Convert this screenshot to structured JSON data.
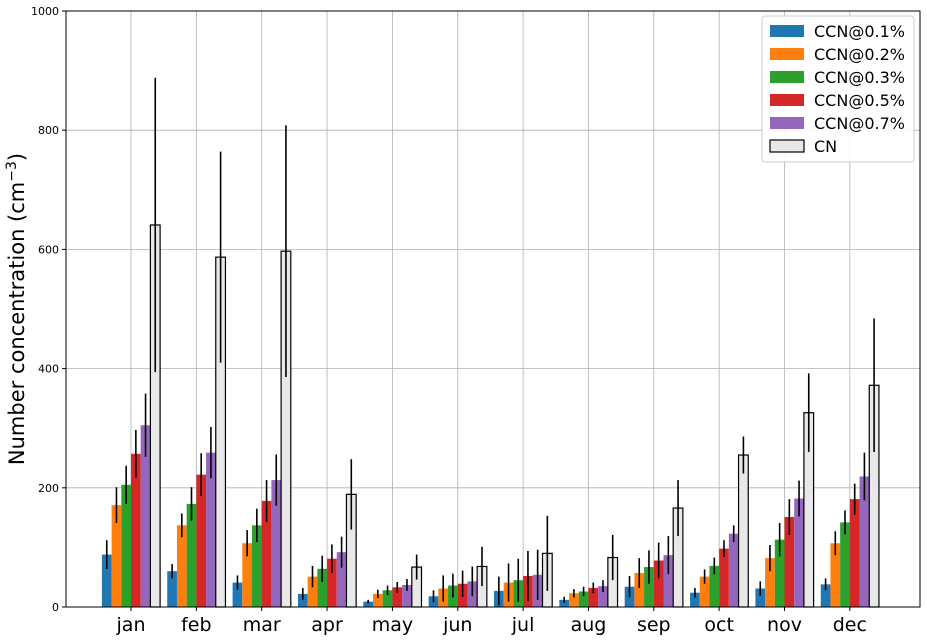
{
  "chart_data": {
    "type": "bar",
    "title": "",
    "xlabel": "",
    "ylabel": "Number concentration (cm",
    "ylabel_exponent": "−3",
    "ylabel_close": ")",
    "categories": [
      "jan",
      "feb",
      "mar",
      "apr",
      "may",
      "jun",
      "jul",
      "aug",
      "sep",
      "oct",
      "nov",
      "dec"
    ],
    "ylim": [
      0,
      1000
    ],
    "yticks": [
      0,
      200,
      400,
      600,
      800,
      1000
    ],
    "grid": true,
    "legend_position": "top-right",
    "series": [
      {
        "name": "CCN@0.1%",
        "color": "#1f77b4",
        "values": [
          88,
          60,
          41,
          22,
          9,
          18,
          27,
          12,
          34,
          24,
          31,
          38
        ],
        "err": [
          24,
          12,
          12,
          10,
          3,
          10,
          24,
          5,
          18,
          8,
          12,
          10
        ]
      },
      {
        "name": "CCN@0.2%",
        "color": "#ff7f0e",
        "values": [
          171,
          137,
          107,
          51,
          22,
          31,
          41,
          23,
          57,
          51,
          82,
          107
        ]
      },
      {
        "name": "CCN@0.3%",
        "color": "#2ca02c",
        "values": [
          205,
          173,
          137,
          64,
          28,
          36,
          45,
          26,
          67,
          69,
          113,
          142
        ]
      },
      {
        "name": "CCN@0.5%",
        "color": "#d62728",
        "values": [
          257,
          222,
          178,
          81,
          33,
          39,
          52,
          32,
          78,
          98,
          151,
          181
        ]
      },
      {
        "name": "CCN@0.7%",
        "color": "#9467bd",
        "values": [
          305,
          259,
          213,
          92,
          37,
          43,
          54,
          35,
          87,
          123,
          182,
          219
        ]
      },
      {
        "name": "CN",
        "color": "#e8e8e8",
        "edge": "#000000",
        "values": [
          641,
          587,
          597,
          189,
          67,
          68,
          90,
          83,
          166,
          255,
          326,
          372
        ],
        "err": [
          247,
          177,
          211,
          59,
          21,
          33,
          63,
          38,
          47,
          31,
          66,
          112
        ]
      }
    ],
    "series_errors": {
      "CCN@0.2%": [
        30,
        20,
        22,
        18,
        7,
        22,
        32,
        7,
        25,
        12,
        22,
        20
      ],
      "CCN@0.3%": [
        32,
        28,
        28,
        22,
        8,
        20,
        36,
        8,
        28,
        14,
        28,
        20
      ],
      "CCN@0.5%": [
        40,
        36,
        35,
        24,
        9,
        22,
        42,
        9,
        30,
        14,
        30,
        26
      ],
      "CCN@0.7%": [
        53,
        43,
        43,
        26,
        10,
        25,
        42,
        10,
        32,
        14,
        30,
        40
      ]
    }
  }
}
